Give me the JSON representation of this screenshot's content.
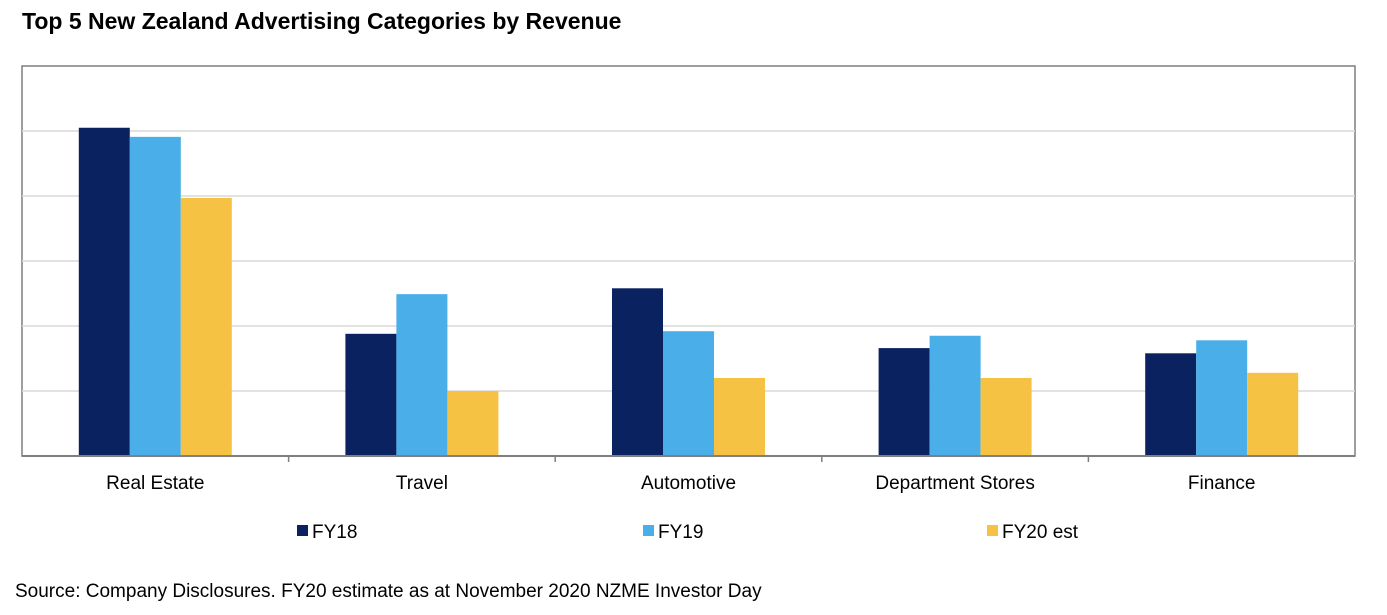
{
  "chart_data": {
    "type": "bar",
    "title": "Top 5 New Zealand Advertising Categories by Revenue",
    "xlabel": "",
    "ylabel": "",
    "ylim": [
      0,
      6
    ],
    "y_units": "relative (gridline units; axis unlabeled)",
    "grid": true,
    "legend_position": "bottom",
    "categories": [
      "Real Estate",
      "Travel",
      "Automotive",
      "Department Stores",
      "Finance"
    ],
    "series": [
      {
        "name": "FY18",
        "color": "#0b2260",
        "values": [
          5.05,
          1.88,
          2.58,
          1.66,
          1.58
        ]
      },
      {
        "name": "FY19",
        "color": "#4aaee8",
        "values": [
          4.91,
          2.49,
          1.92,
          1.85,
          1.78
        ]
      },
      {
        "name": "FY20 est",
        "color": "#f6c244",
        "values": [
          3.97,
          1.0,
          1.2,
          1.2,
          1.28
        ]
      }
    ],
    "source": "Source: Company Disclosures. FY20 estimate as at November 2020 NZME Investor Day"
  }
}
